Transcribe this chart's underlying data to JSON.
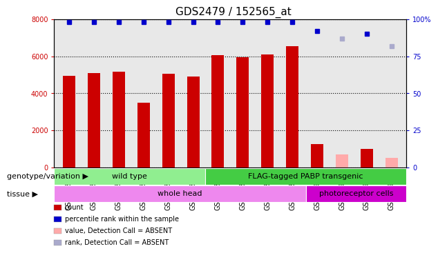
{
  "title": "GDS2479 / 152565_at",
  "samples": [
    "GSM30824",
    "GSM30825",
    "GSM30826",
    "GSM30827",
    "GSM30828",
    "GSM30830",
    "GSM30832",
    "GSM30833",
    "GSM30834",
    "GSM30835",
    "GSM30900",
    "GSM30901",
    "GSM30902",
    "GSM30903"
  ],
  "counts": [
    4950,
    5100,
    5150,
    3500,
    5050,
    4900,
    6050,
    5950,
    6100,
    6550,
    1250,
    700,
    1000,
    500
  ],
  "count_absent": [
    false,
    false,
    false,
    false,
    false,
    false,
    false,
    false,
    false,
    false,
    false,
    true,
    false,
    true
  ],
  "percentile_ranks": [
    98,
    98,
    98,
    98,
    98,
    98,
    98,
    98,
    98,
    98,
    92,
    87,
    90,
    82
  ],
  "rank_absent": [
    false,
    false,
    false,
    false,
    false,
    false,
    false,
    false,
    false,
    false,
    false,
    true,
    false,
    true
  ],
  "ylim_left": [
    0,
    8000
  ],
  "ylim_right": [
    0,
    100
  ],
  "yticks_left": [
    0,
    2000,
    4000,
    6000,
    8000
  ],
  "yticks_right": [
    0,
    25,
    50,
    75,
    100
  ],
  "bar_color_present": "#cc0000",
  "bar_color_absent": "#ffaaaa",
  "dot_color_present": "#0000cc",
  "dot_color_absent": "#aaaacc",
  "bg_color": "#ffffff",
  "genotype_wt_color": "#90ee90",
  "genotype_flag_color": "#44cc44",
  "tissue_wh_color": "#ee88ee",
  "tissue_ph_color": "#cc00cc",
  "legend_items": [
    {
      "label": "count",
      "color": "#cc0000"
    },
    {
      "label": "percentile rank within the sample",
      "color": "#0000cc"
    },
    {
      "label": "value, Detection Call = ABSENT",
      "color": "#ffaaaa"
    },
    {
      "label": "rank, Detection Call = ABSENT",
      "color": "#aaaacc"
    }
  ],
  "row_label_genotype": "genotype/variation",
  "row_label_tissue": "tissue",
  "title_fontsize": 11,
  "tick_fontsize": 7,
  "label_fontsize": 8,
  "annot_fontsize": 8
}
